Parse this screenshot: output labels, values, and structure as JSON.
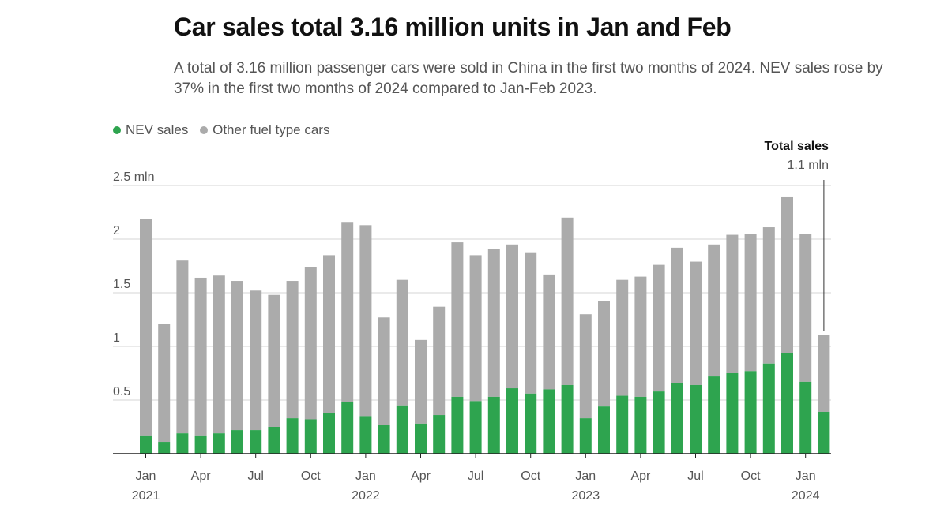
{
  "colors": {
    "nev": "#2ea44f",
    "other": "#ababab",
    "grid": "#d4d4d4",
    "axis": "#222222"
  },
  "legend": {
    "nev_label": "NEV sales",
    "other_label": "Other fuel type cars"
  },
  "chart_data": {
    "type": "bar",
    "stacked": true,
    "title": "Car sales total 3.16 million units in Jan and Feb",
    "subtitle": "A total of 3.16 million passenger cars were sold in China in the first two months of 2024. NEV sales rose by 37% in the first two months of 2024 compared to Jan-Feb 2023.",
    "ylim": [
      0,
      2.5
    ],
    "y_ticks": [
      {
        "value": 2.5,
        "label": "2.5 mln"
      },
      {
        "value": 2,
        "label": "2"
      },
      {
        "value": 1.5,
        "label": "1.5"
      },
      {
        "value": 1,
        "label": "1"
      },
      {
        "value": 0.5,
        "label": "0.5"
      }
    ],
    "categories": [
      "2021-01",
      "2021-02",
      "2021-03",
      "2021-04",
      "2021-05",
      "2021-06",
      "2021-07",
      "2021-08",
      "2021-09",
      "2021-10",
      "2021-11",
      "2021-12",
      "2022-01",
      "2022-02",
      "2022-03",
      "2022-04",
      "2022-05",
      "2022-06",
      "2022-07",
      "2022-08",
      "2022-09",
      "2022-10",
      "2022-11",
      "2022-12",
      "2023-01",
      "2023-02",
      "2023-03",
      "2023-04",
      "2023-05",
      "2023-06",
      "2023-07",
      "2023-08",
      "2023-09",
      "2023-10",
      "2023-11",
      "2023-12",
      "2024-01",
      "2024-02"
    ],
    "series": [
      {
        "name": "NEV sales",
        "values": [
          0.17,
          0.11,
          0.19,
          0.17,
          0.19,
          0.22,
          0.22,
          0.25,
          0.33,
          0.32,
          0.38,
          0.48,
          0.35,
          0.27,
          0.45,
          0.28,
          0.36,
          0.53,
          0.49,
          0.53,
          0.61,
          0.56,
          0.6,
          0.64,
          0.33,
          0.44,
          0.54,
          0.53,
          0.58,
          0.66,
          0.64,
          0.72,
          0.75,
          0.77,
          0.84,
          0.94,
          0.67,
          0.39
        ]
      },
      {
        "name": "Other fuel type cars",
        "values": [
          2.02,
          1.1,
          1.61,
          1.47,
          1.47,
          1.39,
          1.3,
          1.23,
          1.28,
          1.42,
          1.47,
          1.68,
          1.78,
          1.0,
          1.17,
          0.78,
          1.01,
          1.44,
          1.36,
          1.38,
          1.34,
          1.31,
          1.07,
          1.56,
          0.97,
          0.98,
          1.08,
          1.12,
          1.18,
          1.26,
          1.15,
          1.23,
          1.29,
          1.28,
          1.27,
          1.45,
          1.38,
          0.72
        ]
      }
    ],
    "x_tick_labels": [
      {
        "index": 0,
        "month": "Jan",
        "year": "2021"
      },
      {
        "index": 3,
        "month": "Apr",
        "year": ""
      },
      {
        "index": 6,
        "month": "Jul",
        "year": ""
      },
      {
        "index": 9,
        "month": "Oct",
        "year": ""
      },
      {
        "index": 12,
        "month": "Jan",
        "year": "2022"
      },
      {
        "index": 15,
        "month": "Apr",
        "year": ""
      },
      {
        "index": 18,
        "month": "Jul",
        "year": ""
      },
      {
        "index": 21,
        "month": "Oct",
        "year": ""
      },
      {
        "index": 24,
        "month": "Jan",
        "year": "2023"
      },
      {
        "index": 27,
        "month": "Apr",
        "year": ""
      },
      {
        "index": 30,
        "month": "Jul",
        "year": ""
      },
      {
        "index": 33,
        "month": "Oct",
        "year": ""
      },
      {
        "index": 36,
        "month": "Jan",
        "year": "2024"
      }
    ],
    "annotation": {
      "index": 37,
      "title": "Total sales",
      "value_label": "1.1 mln"
    }
  }
}
